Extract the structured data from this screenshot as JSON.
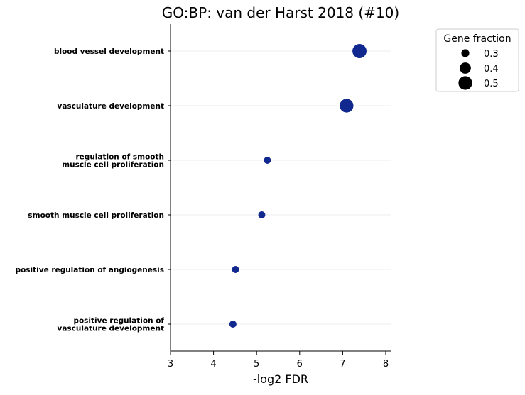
{
  "chart_data": {
    "type": "scatter",
    "title": "GO:BP: van der Harst 2018 (#10)",
    "xlabel": "-log2 FDR",
    "ylabel": "",
    "xlim": [
      3,
      8.1
    ],
    "xticks": [
      "3",
      "4",
      "5",
      "6",
      "7",
      "8"
    ],
    "grid": "horizontal",
    "point_color": "#11288f",
    "categories": [
      "blood vessel development",
      "vasculature development",
      "regulation of smooth\nmuscle cell proliferation",
      "smooth muscle cell proliferation",
      "positive regulation of angiogenesis",
      "positive regulation of\nvasculature development"
    ],
    "x": [
      7.39,
      7.09,
      5.25,
      5.12,
      4.51,
      4.45
    ],
    "size": [
      0.52,
      0.5,
      0.28,
      0.28,
      0.28,
      0.28
    ],
    "legend": {
      "title": "Gene fraction",
      "placement": "top-right outside",
      "entries": [
        {
          "label": "0.3",
          "value": 0.3
        },
        {
          "label": "0.4",
          "value": 0.4
        },
        {
          "label": "0.5",
          "value": 0.5
        }
      ]
    }
  }
}
